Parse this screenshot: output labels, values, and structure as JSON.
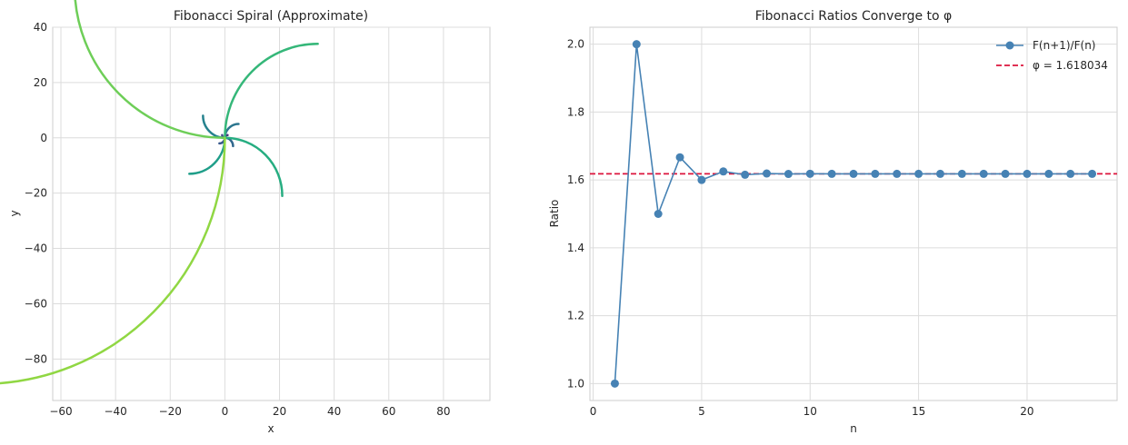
{
  "chart_data": [
    {
      "type": "line",
      "title": "Fibonacci Spiral (Approximate)",
      "xlabel": "x",
      "ylabel": "y",
      "xlim": [
        -63,
        97
      ],
      "ylim": [
        -95,
        40
      ],
      "xticks": [
        -60,
        -40,
        -20,
        0,
        20,
        40,
        60,
        80
      ],
      "yticks": [
        -80,
        -60,
        -40,
        -20,
        0,
        20,
        40
      ],
      "grid": true,
      "arcs": [
        {
          "radius": 1,
          "start": [
            0,
            0
          ],
          "end": [
            1,
            1
          ],
          "color": "#46337e"
        },
        {
          "radius": 1,
          "start": [
            0,
            0
          ],
          "end": [
            -1,
            1
          ],
          "color": "#3e4a89"
        },
        {
          "radius": 2,
          "start": [
            0,
            0
          ],
          "end": [
            -2,
            -2
          ],
          "color": "#38588c"
        },
        {
          "radius": 3,
          "start": [
            0,
            0
          ],
          "end": [
            3,
            -3
          ],
          "color": "#31688e"
        },
        {
          "radius": 5,
          "start": [
            0,
            0
          ],
          "end": [
            5,
            5
          ],
          "color": "#2b758e"
        },
        {
          "radius": 8,
          "start": [
            0,
            0
          ],
          "end": [
            -8,
            8
          ],
          "color": "#26828e"
        },
        {
          "radius": 13,
          "start": [
            0,
            0
          ],
          "end": [
            -13,
            -13
          ],
          "color": "#1f9e89"
        },
        {
          "radius": 21,
          "start": [
            0,
            0
          ],
          "end": [
            21,
            -21
          ],
          "color": "#26ad81"
        },
        {
          "radius": 34,
          "start": [
            0,
            0
          ],
          "end": [
            34,
            34
          ],
          "color": "#35b779"
        },
        {
          "radius": 55,
          "start": [
            0,
            0
          ],
          "end": [
            -55,
            55
          ],
          "color": "#6ece58"
        },
        {
          "radius": 89,
          "start": [
            0,
            0
          ],
          "end": [
            -89,
            -89
          ],
          "color": "#90d743"
        }
      ]
    },
    {
      "type": "line",
      "title": "Fibonacci Ratios Converge to φ",
      "xlabel": "n",
      "ylabel": "Ratio",
      "xlim": [
        -0.15,
        24.15
      ],
      "ylim": [
        0.95,
        2.05
      ],
      "xticks": [
        0,
        5,
        10,
        15,
        20
      ],
      "yticks": [
        1.0,
        1.2,
        1.4,
        1.6,
        1.8,
        2.0
      ],
      "grid": true,
      "legend_placement": "upper right",
      "series": [
        {
          "name": "F(n+1)/F(n)",
          "color": "#4682b4",
          "x": [
            1,
            2,
            3,
            4,
            5,
            6,
            7,
            8,
            9,
            10,
            11,
            12,
            13,
            14,
            15,
            16,
            17,
            18,
            19,
            20,
            21,
            22,
            23
          ],
          "values": [
            1.0,
            2.0,
            1.5,
            1.6667,
            1.6,
            1.625,
            1.6154,
            1.619,
            1.6176,
            1.6182,
            1.618,
            1.618,
            1.618,
            1.618,
            1.618,
            1.618,
            1.618,
            1.618,
            1.618,
            1.618,
            1.618,
            1.618,
            1.618
          ]
        }
      ],
      "reference_line": {
        "name": "φ = 1.618034",
        "value": 1.618034,
        "color": "#dc143c",
        "style": "dashed"
      }
    }
  ]
}
